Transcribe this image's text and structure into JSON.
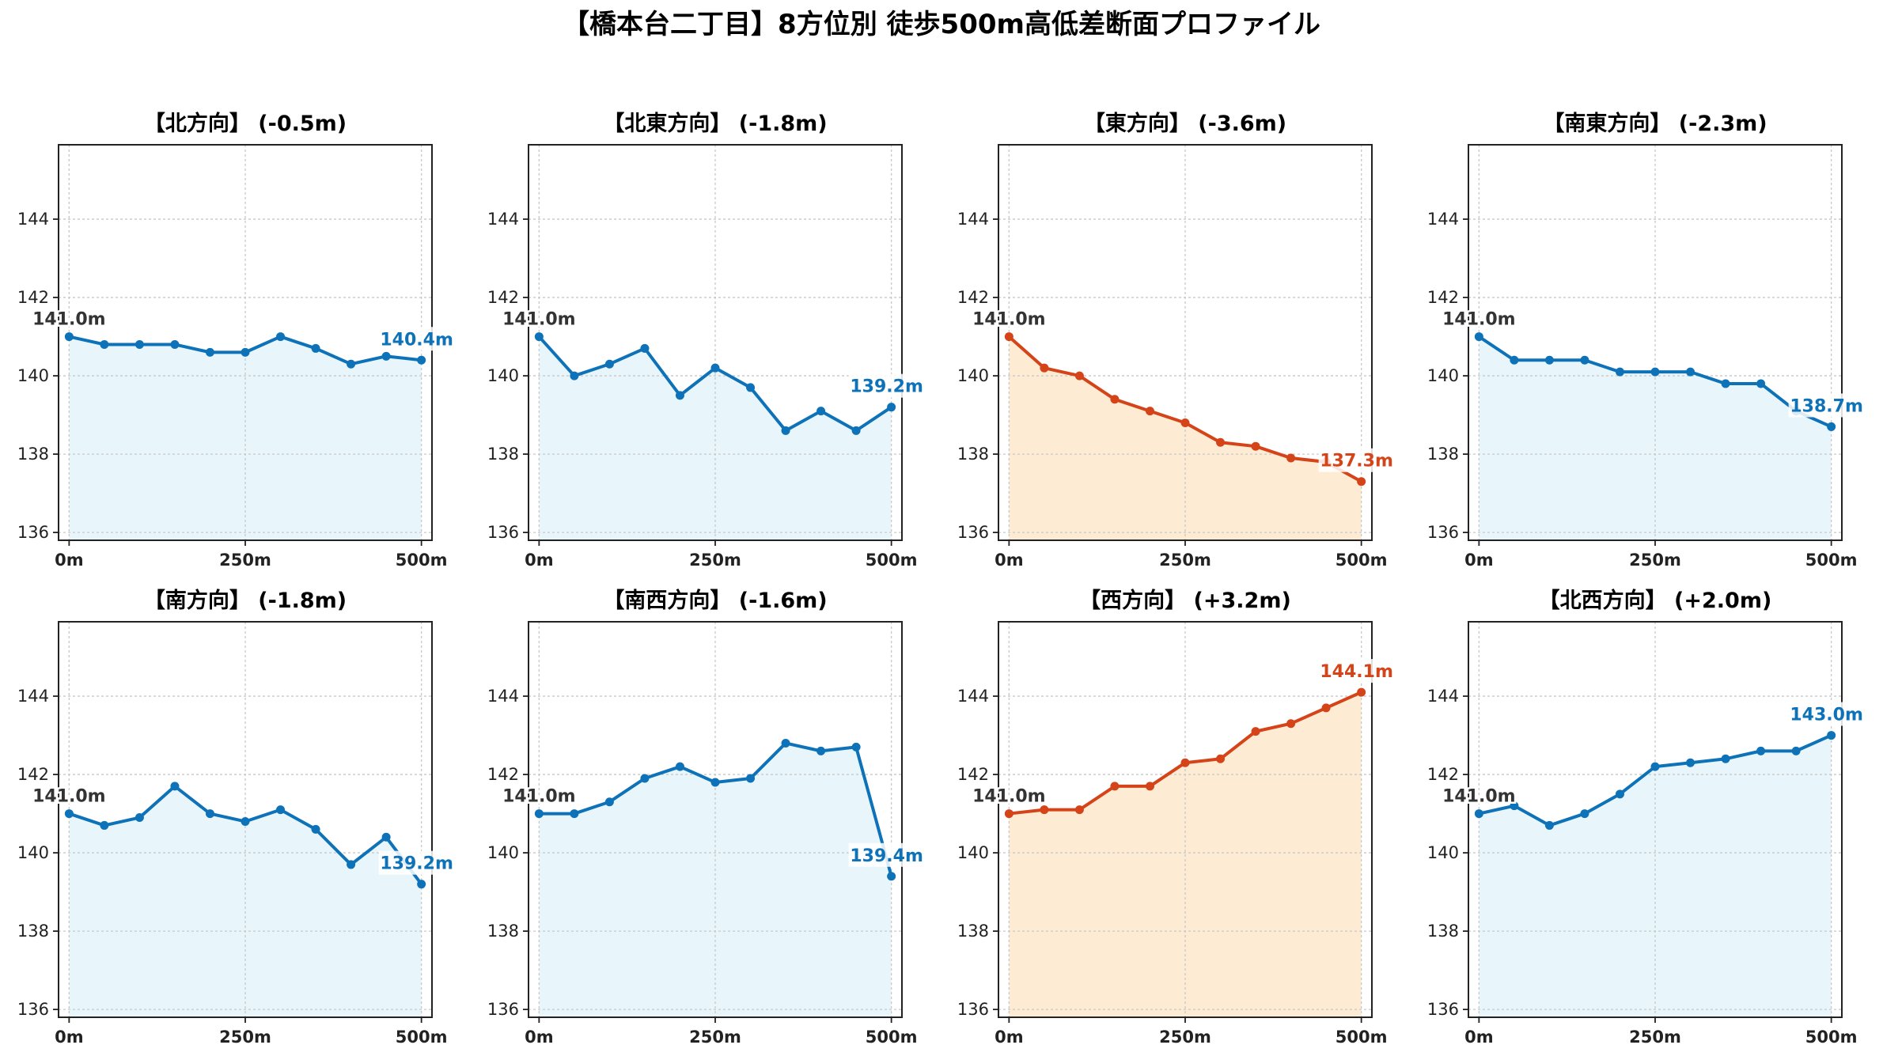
{
  "figure": {
    "suptitle": "【橋本台二丁目】8方位別 徒歩500m高低差断面プロファイル"
  },
  "colors": {
    "descent_line": "#0e72b8",
    "descent_fill": "#e8f6fc",
    "ascent_line": "#d54319",
    "ascent_fill": "#fdecd3",
    "start_label": "#333333"
  },
  "chart_data": [
    {
      "type": "line",
      "title": "【北方向】 (-0.5m)",
      "trend": "down",
      "x": [
        0,
        50,
        100,
        150,
        200,
        250,
        300,
        350,
        400,
        450,
        500
      ],
      "y": [
        141.0,
        140.8,
        140.8,
        140.8,
        140.6,
        140.6,
        141.0,
        140.7,
        140.3,
        140.5,
        140.4
      ],
      "xticks": [
        "0m",
        "250m",
        "500m"
      ],
      "xtick_values": [
        0,
        250,
        500
      ],
      "yticks": [
        "136",
        "138",
        "140",
        "142",
        "144"
      ],
      "ytick_values": [
        136,
        138,
        140,
        142,
        144
      ],
      "xlim": [
        -15,
        515
      ],
      "ylim": [
        135.8,
        145.9
      ],
      "grid": true,
      "start_label": "141.0m",
      "end_label": "140.4m"
    },
    {
      "type": "line",
      "title": "【北東方向】 (-1.8m)",
      "trend": "down",
      "x": [
        0,
        50,
        100,
        150,
        200,
        250,
        300,
        350,
        400,
        450,
        500
      ],
      "y": [
        141.0,
        140.0,
        140.3,
        140.7,
        139.5,
        140.2,
        139.7,
        138.6,
        139.1,
        138.6,
        139.2
      ],
      "xticks": [
        "0m",
        "250m",
        "500m"
      ],
      "xtick_values": [
        0,
        250,
        500
      ],
      "yticks": [
        "136",
        "138",
        "140",
        "142",
        "144"
      ],
      "ytick_values": [
        136,
        138,
        140,
        142,
        144
      ],
      "xlim": [
        -15,
        515
      ],
      "ylim": [
        135.8,
        145.9
      ],
      "grid": true,
      "start_label": "141.0m",
      "end_label": "139.2m"
    },
    {
      "type": "line",
      "title": "【東方向】 (-3.6m)",
      "trend": "up_highlight",
      "x": [
        0,
        50,
        100,
        150,
        200,
        250,
        300,
        350,
        400,
        450,
        500
      ],
      "y": [
        141.0,
        140.2,
        140.0,
        139.4,
        139.1,
        138.8,
        138.3,
        138.2,
        137.9,
        137.8,
        137.3
      ],
      "xticks": [
        "0m",
        "250m",
        "500m"
      ],
      "xtick_values": [
        0,
        250,
        500
      ],
      "yticks": [
        "136",
        "138",
        "140",
        "142",
        "144"
      ],
      "ytick_values": [
        136,
        138,
        140,
        142,
        144
      ],
      "xlim": [
        -15,
        515
      ],
      "ylim": [
        135.8,
        145.9
      ],
      "grid": true,
      "start_label": "141.0m",
      "end_label": "137.3m"
    },
    {
      "type": "line",
      "title": "【南東方向】 (-2.3m)",
      "trend": "down",
      "x": [
        0,
        50,
        100,
        150,
        200,
        250,
        300,
        350,
        400,
        450,
        500
      ],
      "y": [
        141.0,
        140.4,
        140.4,
        140.4,
        140.1,
        140.1,
        140.1,
        139.8,
        139.8,
        139.1,
        138.7
      ],
      "xticks": [
        "0m",
        "250m",
        "500m"
      ],
      "xtick_values": [
        0,
        250,
        500
      ],
      "yticks": [
        "136",
        "138",
        "140",
        "142",
        "144"
      ],
      "ytick_values": [
        136,
        138,
        140,
        142,
        144
      ],
      "xlim": [
        -15,
        515
      ],
      "ylim": [
        135.8,
        145.9
      ],
      "grid": true,
      "start_label": "141.0m",
      "end_label": "138.7m"
    },
    {
      "type": "line",
      "title": "【南方向】 (-1.8m)",
      "trend": "down",
      "x": [
        0,
        50,
        100,
        150,
        200,
        250,
        300,
        350,
        400,
        450,
        500
      ],
      "y": [
        141.0,
        140.7,
        140.9,
        141.7,
        141.0,
        140.8,
        141.1,
        140.6,
        139.7,
        140.4,
        139.2
      ],
      "xticks": [
        "0m",
        "250m",
        "500m"
      ],
      "xtick_values": [
        0,
        250,
        500
      ],
      "yticks": [
        "136",
        "138",
        "140",
        "142",
        "144"
      ],
      "ytick_values": [
        136,
        138,
        140,
        142,
        144
      ],
      "xlim": [
        -15,
        515
      ],
      "ylim": [
        135.8,
        145.9
      ],
      "grid": true,
      "start_label": "141.0m",
      "end_label": "139.2m"
    },
    {
      "type": "line",
      "title": "【南西方向】 (-1.6m)",
      "trend": "down",
      "x": [
        0,
        50,
        100,
        150,
        200,
        250,
        300,
        350,
        400,
        450,
        500
      ],
      "y": [
        141.0,
        141.0,
        141.3,
        141.9,
        142.2,
        141.8,
        141.9,
        142.8,
        142.6,
        142.7,
        139.4
      ],
      "xticks": [
        "0m",
        "250m",
        "500m"
      ],
      "xtick_values": [
        0,
        250,
        500
      ],
      "yticks": [
        "136",
        "138",
        "140",
        "142",
        "144"
      ],
      "ytick_values": [
        136,
        138,
        140,
        142,
        144
      ],
      "xlim": [
        -15,
        515
      ],
      "ylim": [
        135.8,
        145.9
      ],
      "grid": true,
      "start_label": "141.0m",
      "end_label": "139.4m"
    },
    {
      "type": "line",
      "title": "【西方向】 (+3.2m)",
      "trend": "up_highlight",
      "x": [
        0,
        50,
        100,
        150,
        200,
        250,
        300,
        350,
        400,
        450,
        500
      ],
      "y": [
        141.0,
        141.1,
        141.1,
        141.7,
        141.7,
        142.3,
        142.4,
        143.1,
        143.3,
        143.7,
        144.1
      ],
      "xticks": [
        "0m",
        "250m",
        "500m"
      ],
      "xtick_values": [
        0,
        250,
        500
      ],
      "yticks": [
        "136",
        "138",
        "140",
        "142",
        "144"
      ],
      "ytick_values": [
        136,
        138,
        140,
        142,
        144
      ],
      "xlim": [
        -15,
        515
      ],
      "ylim": [
        135.8,
        145.9
      ],
      "grid": true,
      "start_label": "141.0m",
      "end_label": "144.1m"
    },
    {
      "type": "line",
      "title": "【北西方向】 (+2.0m)",
      "trend": "down",
      "x": [
        0,
        50,
        100,
        150,
        200,
        250,
        300,
        350,
        400,
        450,
        500
      ],
      "y": [
        141.0,
        141.2,
        140.7,
        141.0,
        141.5,
        142.2,
        142.3,
        142.4,
        142.6,
        142.6,
        143.0
      ],
      "xticks": [
        "0m",
        "250m",
        "500m"
      ],
      "xtick_values": [
        0,
        250,
        500
      ],
      "yticks": [
        "136",
        "138",
        "140",
        "142",
        "144"
      ],
      "ytick_values": [
        136,
        138,
        140,
        142,
        144
      ],
      "xlim": [
        -15,
        515
      ],
      "ylim": [
        135.8,
        145.9
      ],
      "grid": true,
      "start_label": "141.0m",
      "end_label": "143.0m"
    }
  ]
}
